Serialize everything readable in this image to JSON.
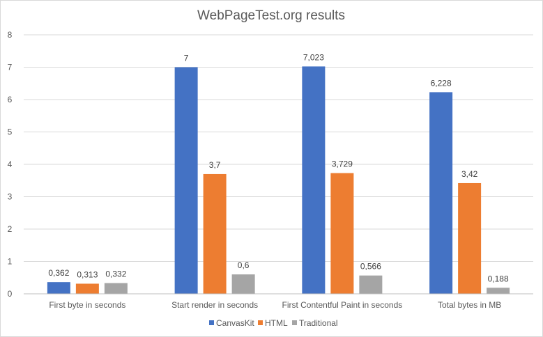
{
  "chart_data": {
    "type": "bar",
    "title": "WebPageTest.org results",
    "xlabel": "",
    "ylabel": "",
    "ylim": [
      0,
      8
    ],
    "yticks": [
      0,
      1,
      2,
      3,
      4,
      5,
      6,
      7,
      8
    ],
    "yticklabels": [
      "0",
      "1",
      "2",
      "3",
      "4",
      "5",
      "6",
      "7",
      "8"
    ],
    "grid": true,
    "legend_position": "bottom",
    "categories": [
      "First byte in seconds",
      "Start render in seconds",
      "First Contentful Paint in seconds",
      "Total bytes in MB"
    ],
    "series": [
      {
        "name": "CanvasKit",
        "color": "#4472c4",
        "values": [
          0.362,
          7,
          7.023,
          6.228
        ],
        "labels": [
          "0,362",
          "7",
          "7,023",
          "6,228"
        ]
      },
      {
        "name": "HTML",
        "color": "#ed7d31",
        "values": [
          0.313,
          3.7,
          3.729,
          3.42
        ],
        "labels": [
          "0,313",
          "3,7",
          "3,729",
          "3,42"
        ]
      },
      {
        "name": "Traditional",
        "color": "#a5a5a5",
        "values": [
          0.332,
          0.6,
          0.566,
          0.188
        ],
        "labels": [
          "0,332",
          "0,6",
          "0,566",
          "0,188"
        ]
      }
    ]
  }
}
